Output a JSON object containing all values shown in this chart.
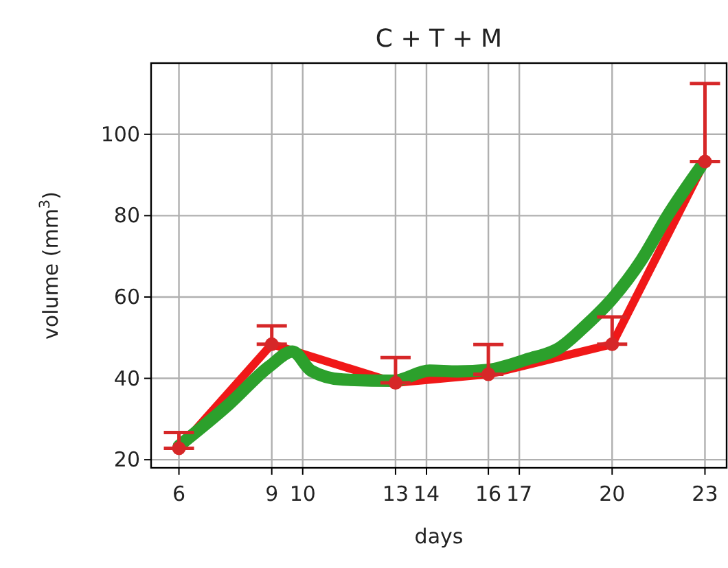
{
  "chart_data": {
    "type": "line",
    "title": "C + T + M",
    "xlabel": "days",
    "ylabel": "volume (mm$^{3}$)",
    "xlim": [
      5.1,
      23.7
    ],
    "xticks": [
      6,
      9,
      10,
      13,
      14,
      16,
      17,
      20,
      23
    ],
    "ylim": [
      18,
      117.5
    ],
    "yticks": [
      20,
      40,
      60,
      80,
      100
    ],
    "grid": true,
    "series": [
      {
        "color": "#f01818",
        "marker": "circle",
        "x": [
          6,
          9,
          13,
          16,
          20,
          23
        ],
        "values": [
          22.8,
          48.4,
          38.9,
          41.0,
          48.4,
          93.3
        ],
        "errors": [
          [
            22.8,
            26.7
          ],
          [
            48.4,
            52.9
          ],
          [
            38.9,
            45.1
          ],
          [
            41.0,
            48.3
          ],
          [
            48.4,
            55.1
          ],
          [
            93.3,
            112.5
          ]
        ]
      },
      {
        "color": "#2ca02c",
        "marker": "none",
        "x": [
          6,
          7.6,
          8.93,
          9.67,
          10.27,
          11.3,
          12.93,
          14.1,
          15.0,
          16.0,
          17.26,
          18.3,
          19.16,
          20.04,
          20.93,
          21.8,
          22.86
        ],
        "values": [
          23.4,
          33.5,
          43,
          46.6,
          41.9,
          39.7,
          39.4,
          41.9,
          41.7,
          42.1,
          44.7,
          47.5,
          53.1,
          59.9,
          68.9,
          80.1,
          92
        ]
      }
    ]
  }
}
